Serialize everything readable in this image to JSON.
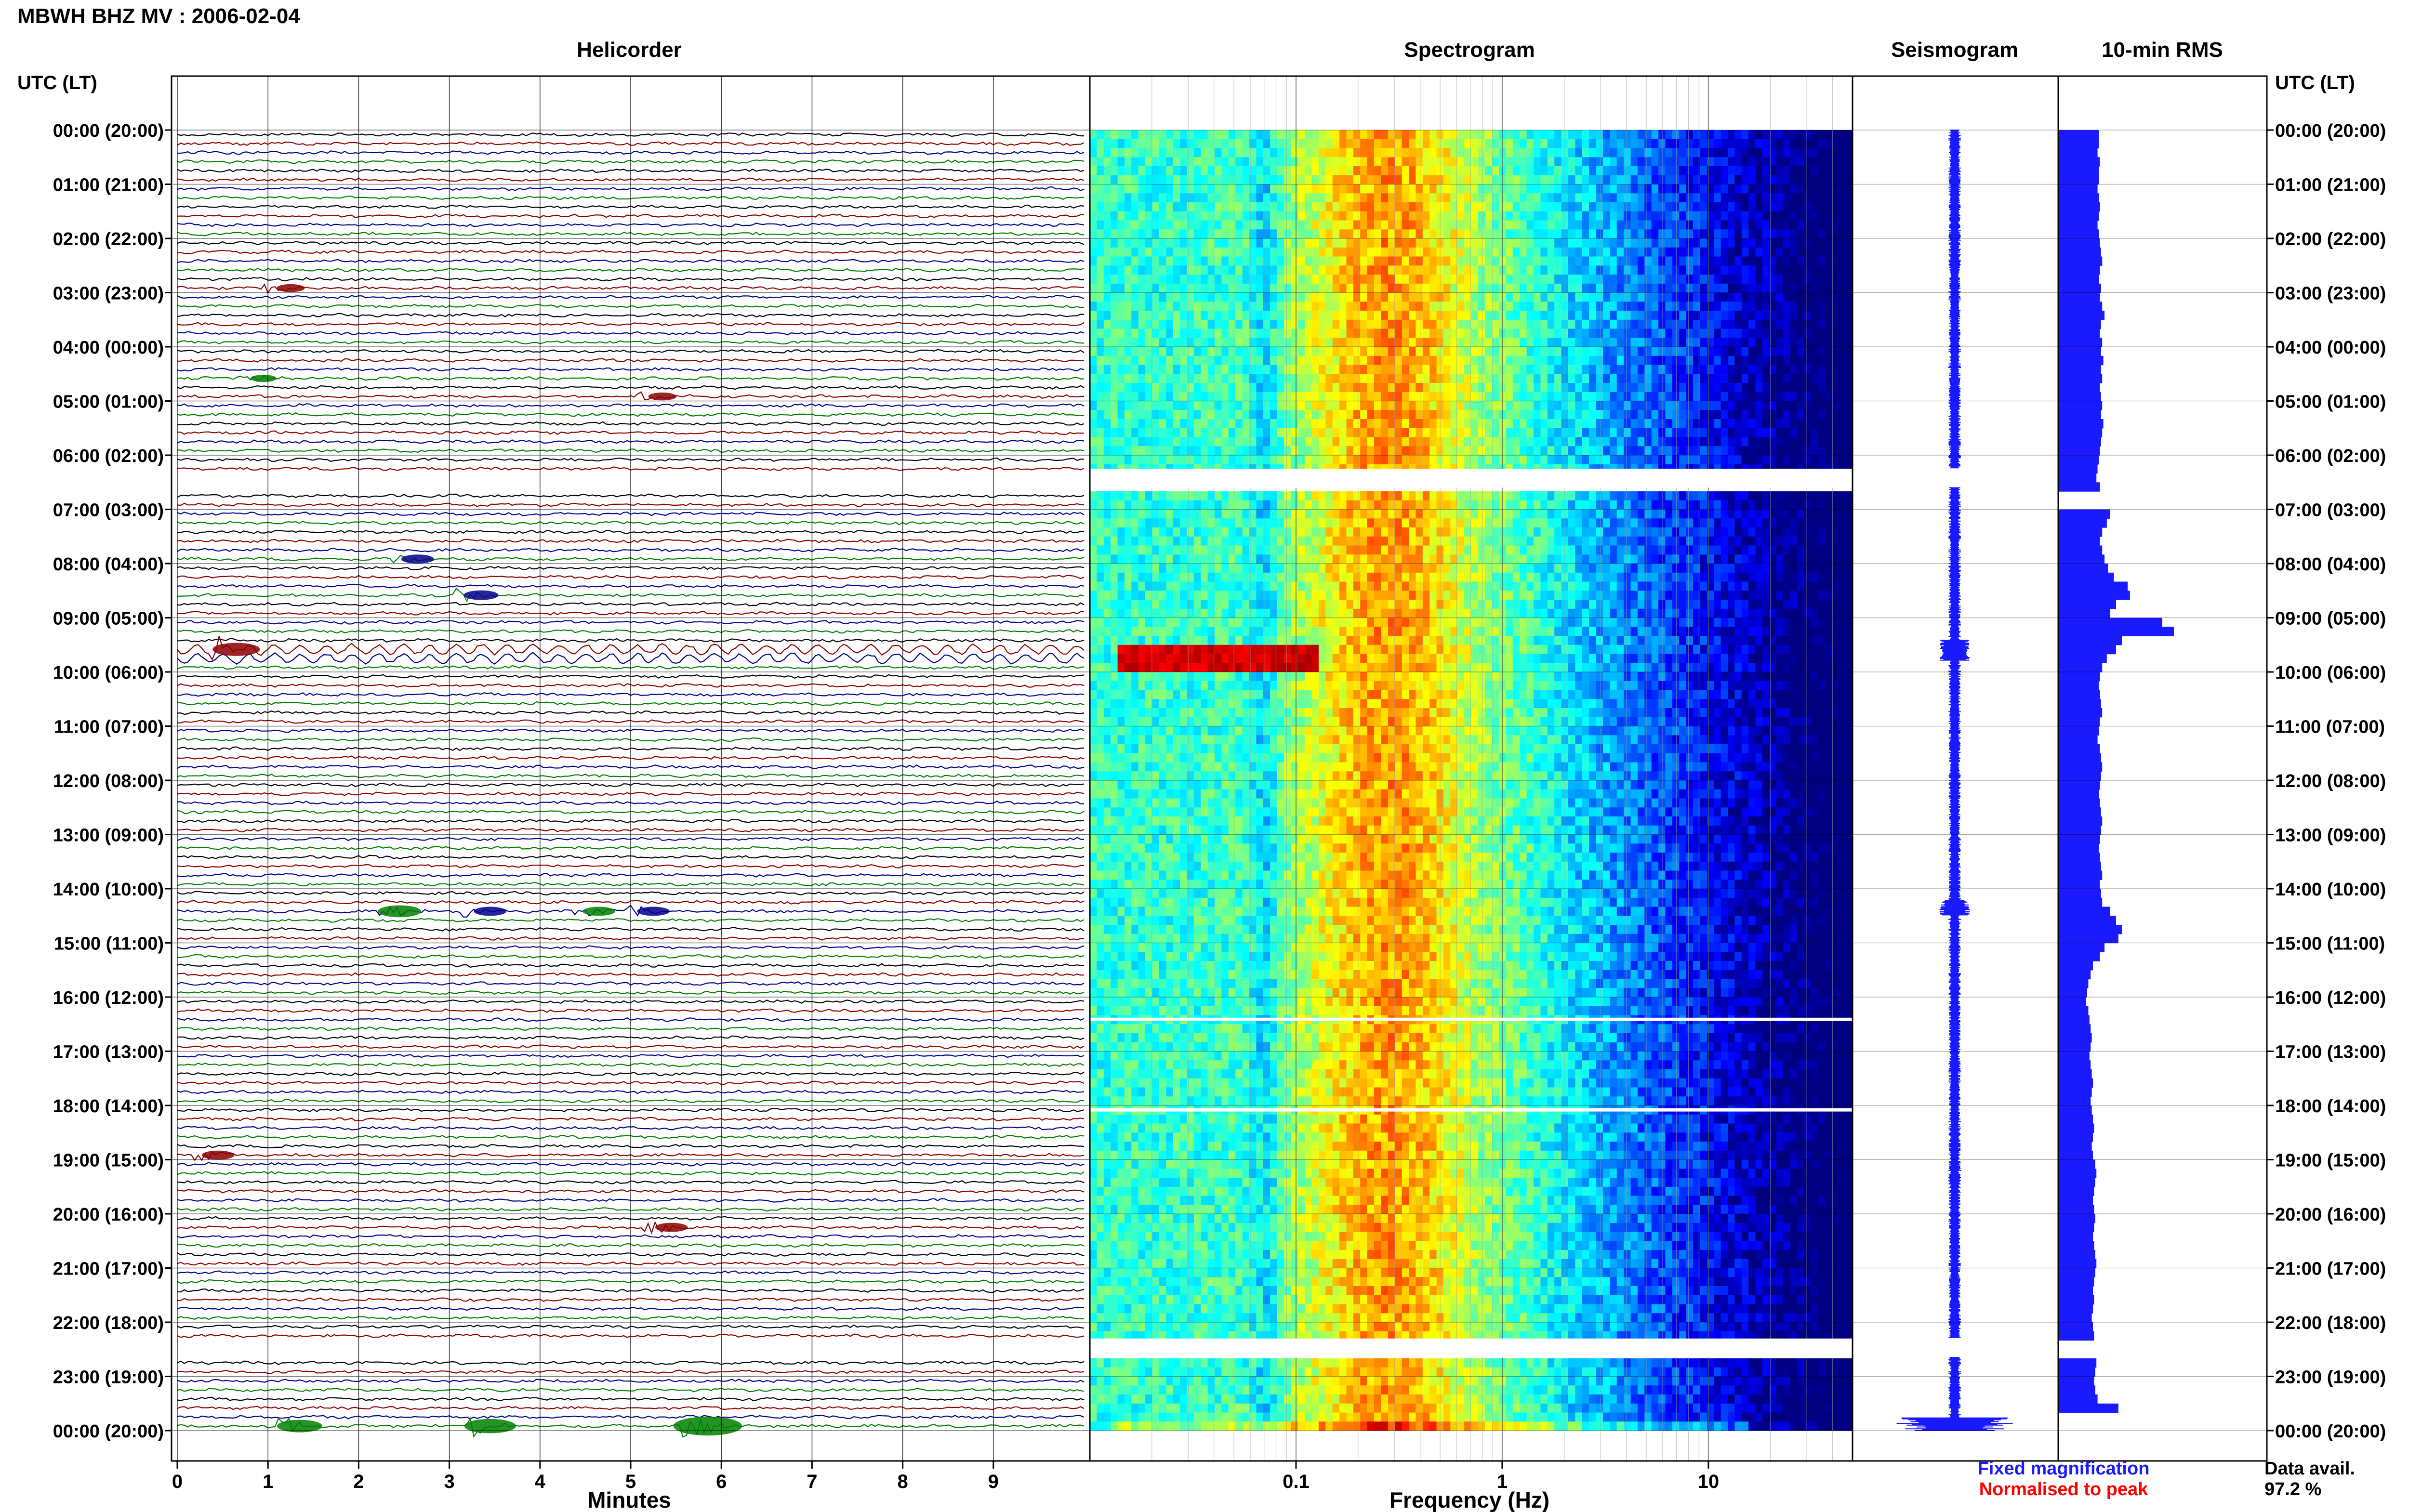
{
  "chart_data": {
    "type": "heatmap",
    "title": "MBWH BHZ MV : 2006-02-04",
    "time_axis_label": "UTC (LT)",
    "time_ticks": [
      "00:00 (20:00)",
      "01:00 (21:00)",
      "02:00 (22:00)",
      "03:00 (23:00)",
      "04:00 (00:00)",
      "05:00 (01:00)",
      "06:00 (02:00)",
      "07:00 (03:00)",
      "08:00 (04:00)",
      "09:00 (05:00)",
      "10:00 (06:00)",
      "11:00 (07:00)",
      "12:00 (08:00)",
      "13:00 (09:00)",
      "14:00 (10:00)",
      "15:00 (11:00)",
      "16:00 (12:00)",
      "17:00 (13:00)",
      "18:00 (14:00)",
      "19:00 (15:00)",
      "20:00 (16:00)",
      "21:00 (17:00)",
      "22:00 (18:00)",
      "23:00 (19:00)",
      "00:00 (20:00)"
    ],
    "panels": {
      "helicorder": {
        "title": "Helicorder",
        "xlabel": "Minutes",
        "x_ticks": [
          "0",
          "1",
          "2",
          "3",
          "4",
          "5",
          "6",
          "7",
          "8",
          "9"
        ],
        "xlim": [
          0,
          10
        ],
        "trace_colors": [
          "#000000",
          "#8b0000",
          "#00008b",
          "#008000"
        ],
        "events": [
          {
            "hour": 2.8,
            "minute": 1.1,
            "amp": 0.7,
            "color": "#8b0000"
          },
          {
            "hour": 4.5,
            "minute": 0.8,
            "amp": 0.6,
            "color": "#008000"
          },
          {
            "hour": 4.8,
            "minute": 5.2,
            "amp": 0.7,
            "color": "#8b0000"
          },
          {
            "hour": 7.8,
            "minute": 2.5,
            "amp": 0.9,
            "color": "#00008b"
          },
          {
            "hour": 8.5,
            "minute": 3.2,
            "amp": 1.0,
            "color": "#00008b"
          },
          {
            "hour": 9.5,
            "minute": 0.5,
            "amp": 1.6,
            "color": "#8b0000"
          },
          {
            "hour": 14.3,
            "minute": 2.3,
            "amp": 1.4,
            "color": "#008000"
          },
          {
            "hour": 14.3,
            "minute": 3.3,
            "amp": 0.9,
            "color": "#00008b"
          },
          {
            "hour": 14.3,
            "minute": 4.5,
            "amp": 0.9,
            "color": "#008000"
          },
          {
            "hour": 14.3,
            "minute": 5.1,
            "amp": 0.9,
            "color": "#00008b"
          },
          {
            "hour": 18.8,
            "minute": 0.3,
            "amp": 0.9,
            "color": "#8b0000"
          },
          {
            "hour": 20.1,
            "minute": 5.3,
            "amp": 0.9,
            "color": "#8b0000"
          },
          {
            "hour": 23.8,
            "minute": 1.2,
            "amp": 1.5,
            "color": "#008000"
          },
          {
            "hour": 23.8,
            "minute": 3.3,
            "amp": 1.8,
            "color": "#008000"
          },
          {
            "hour": 23.8,
            "minute": 5.7,
            "amp": 2.6,
            "color": "#008000"
          }
        ]
      },
      "spectrogram": {
        "title": "Spectrogram",
        "xlabel": "Frequency (Hz)",
        "x_ticks": [
          "0.1",
          "1",
          "10"
        ],
        "xscale": "log",
        "xlim": [
          0.01,
          50
        ]
      },
      "seismogram": {
        "title": "Seismogram"
      },
      "rms": {
        "title": "10-min RMS",
        "values": [
          0.35,
          0.35,
          0.34,
          0.36,
          0.35,
          0.35,
          0.34,
          0.35,
          0.36,
          0.35,
          0.34,
          0.35,
          0.36,
          0.37,
          0.38,
          0.36,
          0.35,
          0.37,
          0.36,
          0.38,
          0.4,
          0.37,
          0.36,
          0.38,
          0.37,
          0.39,
          0.37,
          0.38,
          0.36,
          0.37,
          0.38,
          0.37,
          0.39,
          0.38,
          0.37,
          0.36,
          0.35,
          0.34,
          0.33,
          0.36,
          0.0,
          0.0,
          0.45,
          0.42,
          0.38,
          0.36,
          0.38,
          0.4,
          0.43,
          0.48,
          0.6,
          0.62,
          0.5,
          0.45,
          0.9,
          1.0,
          0.55,
          0.5,
          0.42,
          0.38,
          0.36,
          0.35,
          0.36,
          0.37,
          0.38,
          0.36,
          0.35,
          0.34,
          0.36,
          0.37,
          0.38,
          0.37,
          0.36,
          0.35,
          0.36,
          0.37,
          0.38,
          0.37,
          0.36,
          0.35,
          0.36,
          0.37,
          0.38,
          0.36,
          0.37,
          0.38,
          0.45,
          0.5,
          0.55,
          0.52,
          0.4,
          0.36,
          0.3,
          0.28,
          0.26,
          0.25,
          0.24,
          0.26,
          0.27,
          0.28,
          0.29,
          0.28,
          0.27,
          0.28,
          0.29,
          0.3,
          0.29,
          0.28,
          0.29,
          0.3,
          0.31,
          0.3,
          0.29,
          0.3,
          0.32,
          0.33,
          0.32,
          0.31,
          0.3,
          0.31,
          0.32,
          0.31,
          0.3,
          0.31,
          0.32,
          0.33,
          0.32,
          0.31,
          0.3,
          0.31,
          0.3,
          0.29,
          0.3,
          0.31,
          0.0,
          0.0,
          0.33,
          0.32,
          0.31,
          0.32,
          0.34,
          0.52
        ]
      }
    },
    "data_gaps_hours": [
      [
        6.25,
        6.6
      ],
      [
        22.3,
        22.65
      ]
    ],
    "legend": [
      {
        "label": "Fixed magnification",
        "color": "#1a1aff"
      },
      {
        "label": "Normalised to peak",
        "color": "#ff0000"
      }
    ],
    "data_availability": {
      "label": "Data avail.",
      "value": "97.2 %"
    }
  }
}
